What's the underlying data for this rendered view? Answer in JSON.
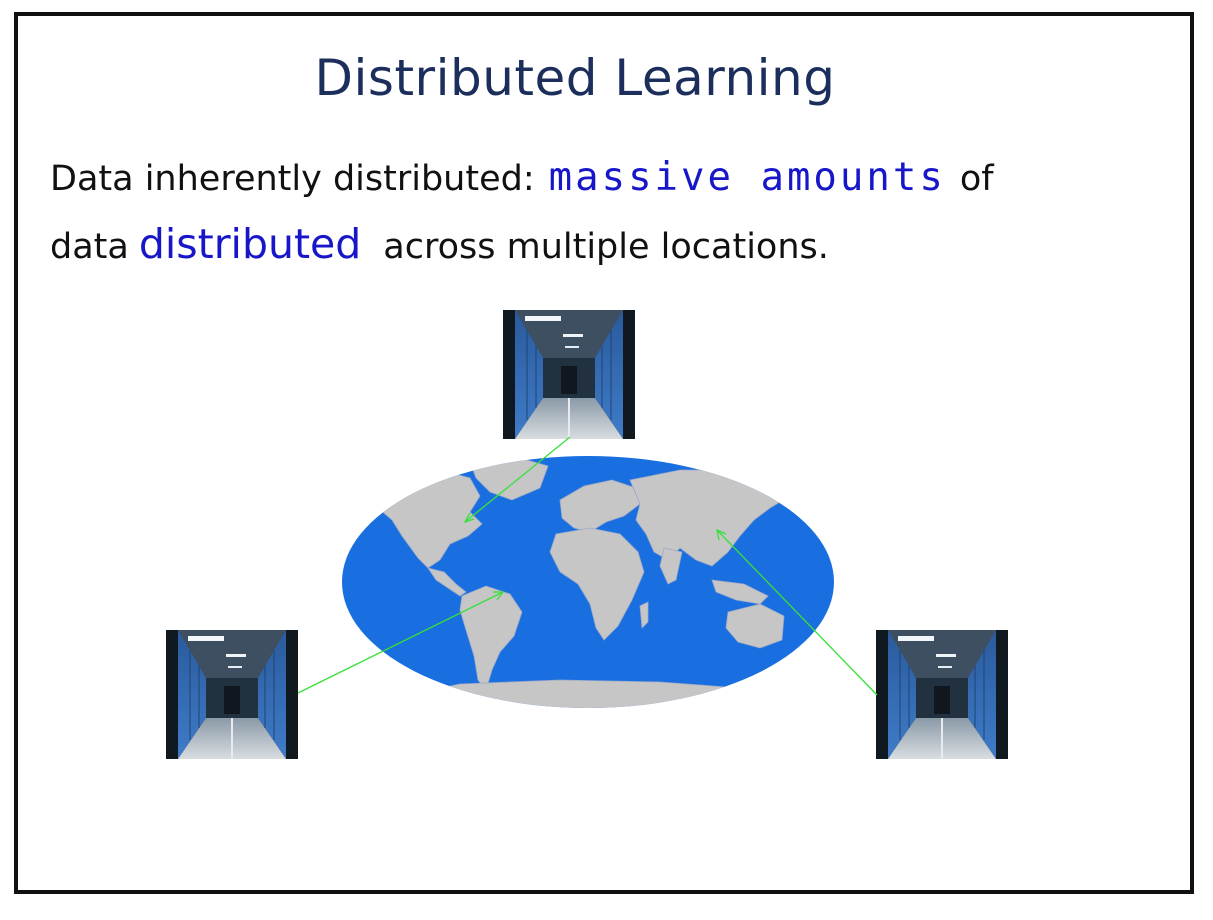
{
  "slide": {
    "title": "Distributed Learning",
    "line1_prefix": "Data inherently distributed:",
    "line1_highlight": "massive amounts",
    "line1_suffix": "of",
    "line2_prefix": "data",
    "line2_highlight": "distributed",
    "line2_suffix": "across multiple locations."
  },
  "colors": {
    "title": "#1c2f5c",
    "highlight": "#1717c9",
    "ocean": "#1a6fe0",
    "land": "#c6c6c6",
    "arrow": "#37e03a",
    "border": "#111111"
  },
  "images": {
    "datacenter_top": "datacenter-corridor-photo",
    "datacenter_left": "datacenter-corridor-photo",
    "datacenter_right": "datacenter-corridor-photo",
    "world_map": "world-map"
  }
}
